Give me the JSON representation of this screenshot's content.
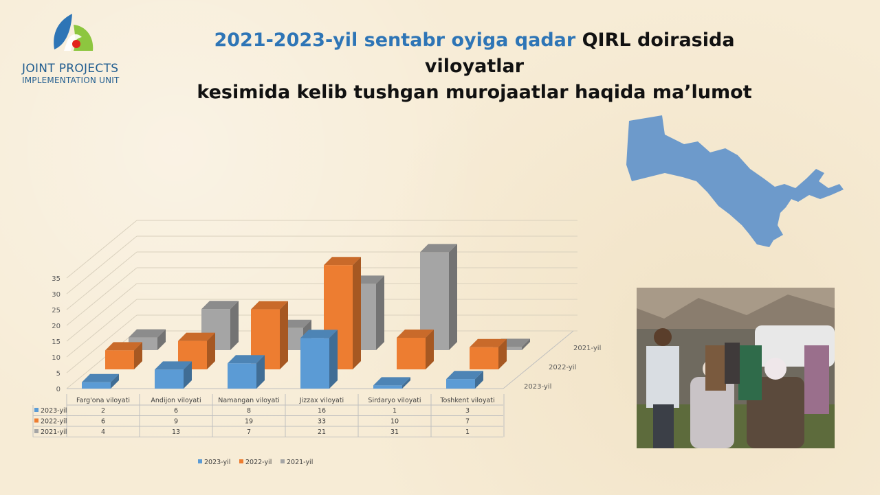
{
  "logo": {
    "line1": "JOINT PROJECTS",
    "line2": "IMPLEMENTATION UNIT"
  },
  "title": {
    "highlight": "2021-2023-yil sentabr oyiga qadar",
    "rest_line1": " QIRL doirasida viloyatlar",
    "line2": "kesimida kelib tushgan murojaatlar haqida ma’lumot"
  },
  "colors": {
    "2023": "#5b9bd5",
    "2022": "#ed7d31",
    "2021": "#a5a5a5",
    "title_accent": "#2e75b6",
    "map": "#6d9acb"
  },
  "chart_data": {
    "type": "bar",
    "style": "3d-clustered-column-with-data-table",
    "categories": [
      "Farg'ona viloyati",
      "Andijon viloyati",
      "Namangan viloyati",
      "Jizzax viloyati",
      "Sirdaryo viloyati",
      "Toshkent viloyati"
    ],
    "series": [
      {
        "name": "2023-yil",
        "values": [
          2,
          6,
          8,
          16,
          1,
          3
        ]
      },
      {
        "name": "2022-yil",
        "values": [
          6,
          9,
          19,
          33,
          10,
          7
        ]
      },
      {
        "name": "2021-yil",
        "values": [
          4,
          13,
          7,
          21,
          31,
          1
        ]
      }
    ],
    "depth_labels": [
      "2021-yil",
      "2022-yil",
      "2023-yil"
    ],
    "y_ticks": [
      "0",
      "5",
      "10",
      "15",
      "20",
      "25",
      "30",
      "35"
    ],
    "ylim": [
      0,
      40
    ],
    "grid": true,
    "legend": [
      "2023-yil",
      "2022-yil",
      "2021-yil"
    ],
    "legend_position": "bottom"
  },
  "map": {
    "icon": "uzbekistan-map"
  },
  "photo": {
    "icon": "group-photo"
  }
}
